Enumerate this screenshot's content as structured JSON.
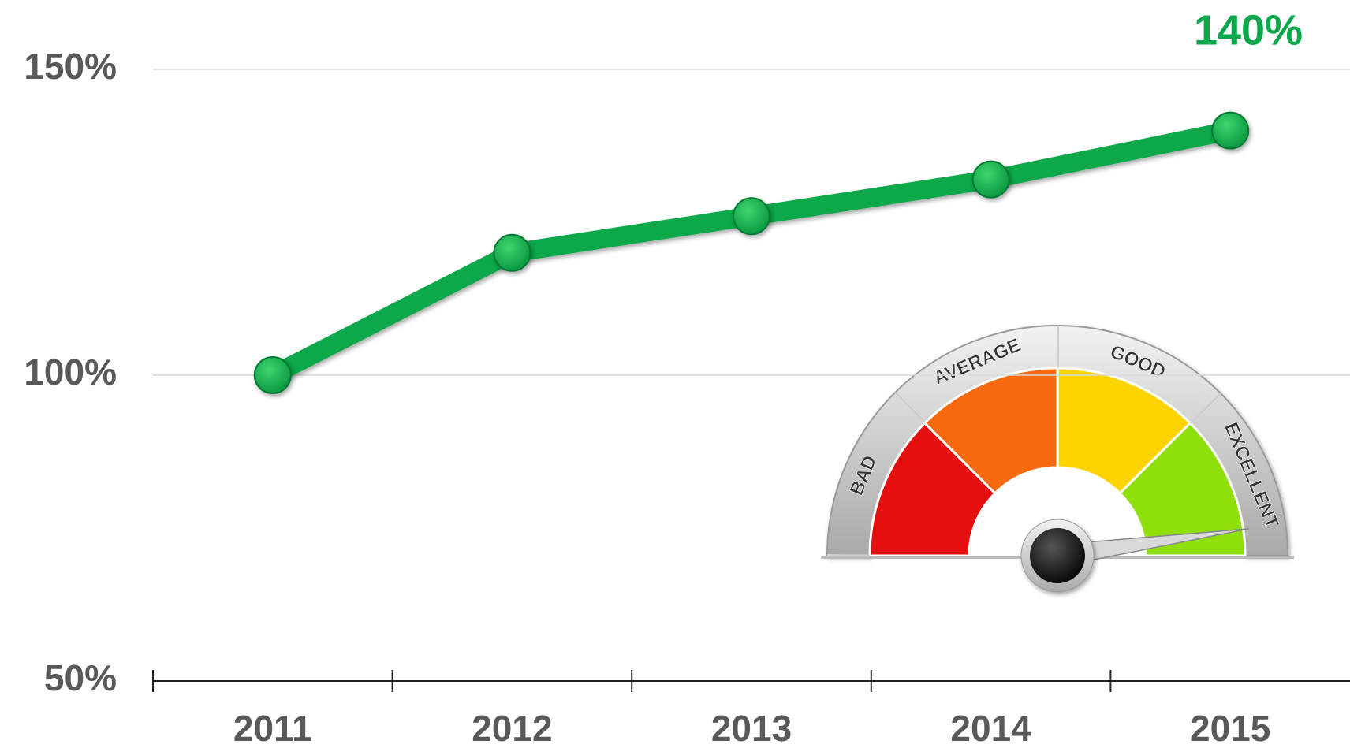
{
  "chart_data": {
    "type": "line",
    "categories": [
      "2011",
      "2012",
      "2013",
      "2014",
      "2015"
    ],
    "values": [
      100,
      120,
      126,
      132,
      140
    ],
    "value_labels": [
      null,
      null,
      null,
      null,
      "140%"
    ],
    "color": "#0aa84a",
    "ylim": [
      50,
      150
    ],
    "yticks": [
      {
        "value": 50,
        "label": "50%"
      },
      {
        "value": 100,
        "label": "100%"
      },
      {
        "value": 150,
        "label": "150%"
      }
    ],
    "grid": true
  },
  "gauge": {
    "labels": [
      "BAD",
      "AVERAGE",
      "GOOD",
      "EXCELLENT"
    ]
  }
}
